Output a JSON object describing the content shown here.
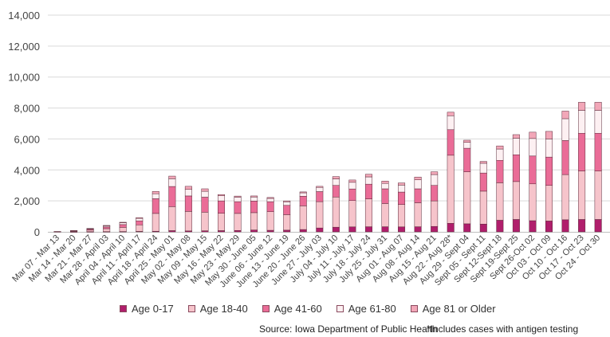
{
  "chart_data": {
    "type": "bar",
    "stacked": true,
    "categories": [
      "Mar 07 - Mar 13",
      "Mar 14 - Mar 20",
      "Mar 21 - Mar 27",
      "Mar 28 - April 03",
      "April 04 - April 10",
      "April 11 - April 17",
      "April 18 - April 24",
      "April 25 - May 01",
      "May 02 - May 08",
      "May 09 - May 15",
      "May 16 - May 22",
      "May 23 - May 29",
      "May 30 - June 05",
      "June 06 - June 12",
      "June 13 - June 19",
      "June 20 - June 26",
      "June 27 - July 03",
      "July 04 - July 10",
      "July 11 - July 17",
      "July 18 - July 24",
      "July 25 - July 31",
      "Aug 01 - Aug 07",
      "Aug 08 - Aug 14",
      "Aug 15 - Aug 21",
      "Aug 22 - Aug 28*",
      "Aug 29 - Sept 04",
      "Sept 05 - Sept 11",
      "Sept 12-Sept 18",
      "Sept 19-Sept 25",
      "Sept 26-Oct 02",
      "Oct 03 - Oct 09",
      "Oct 10 - Oct 16",
      "Oct 17 - Oct 23",
      "Oct 24 - Oct 30"
    ],
    "series": [
      {
        "name": "Age 0-17",
        "color": "#b01e6c",
        "values": [
          0,
          5,
          10,
          15,
          20,
          30,
          40,
          80,
          60,
          70,
          80,
          90,
          120,
          100,
          110,
          150,
          250,
          300,
          320,
          330,
          330,
          320,
          330,
          350,
          550,
          520,
          500,
          750,
          800,
          720,
          700,
          780,
          800,
          800
        ]
      },
      {
        "name": "Age 18-40",
        "color": "#f6c4cb",
        "values": [
          15,
          45,
          100,
          190,
          270,
          420,
          1150,
          1550,
          1260,
          1200,
          1120,
          1100,
          1120,
          1200,
          1000,
          1530,
          1700,
          1950,
          1700,
          1800,
          1500,
          1450,
          1550,
          1650,
          4400,
          3360,
          2130,
          2420,
          2450,
          2380,
          2300,
          2920,
          3130,
          3130
        ]
      },
      {
        "name": "Age 41-60",
        "color": "#ea6c97",
        "values": [
          5,
          20,
          60,
          110,
          180,
          260,
          950,
          1300,
          1000,
          970,
          800,
          760,
          750,
          650,
          600,
          620,
          650,
          750,
          750,
          950,
          950,
          800,
          900,
          1000,
          1650,
          1520,
          1170,
          1450,
          1730,
          1800,
          1830,
          2200,
          2440,
          2440
        ]
      },
      {
        "name": "Age 61-80",
        "color": "#fdf0f2",
        "values": [
          3,
          10,
          40,
          80,
          120,
          160,
          320,
          500,
          420,
          380,
          330,
          290,
          260,
          210,
          230,
          220,
          270,
          420,
          430,
          470,
          350,
          450,
          580,
          700,
          900,
          380,
          630,
          730,
          1070,
          1130,
          1170,
          1410,
          1480,
          1480
        ]
      },
      {
        "name": "Age 81 or Older",
        "color": "#f2a7b8",
        "values": [
          0,
          2,
          10,
          20,
          30,
          50,
          150,
          170,
          200,
          160,
          80,
          70,
          70,
          60,
          60,
          60,
          70,
          150,
          150,
          170,
          150,
          140,
          180,
          180,
          230,
          140,
          120,
          200,
          230,
          410,
          490,
          490,
          520,
          520
        ]
      }
    ],
    "title": "",
    "xlabel": "",
    "ylabel": "",
    "ylim": [
      0,
      14000
    ],
    "yticks": [
      "0",
      "2,000",
      "4,000",
      "6,000",
      "8,000",
      "10,000",
      "12,000",
      "14,000"
    ],
    "yticks_values": [
      0,
      2000,
      4000,
      6000,
      8000,
      10000,
      12000,
      14000
    ],
    "grid": true,
    "legend_position": "bottom",
    "last_category_clipped": true
  },
  "source": "Source: Iowa Department of Public Health",
  "note": "*Includes cases with antigen testing",
  "colors": {
    "grid": "#d9d9d9",
    "axis": "#bfbfbf",
    "bar_outline": "#5a2a3a"
  }
}
